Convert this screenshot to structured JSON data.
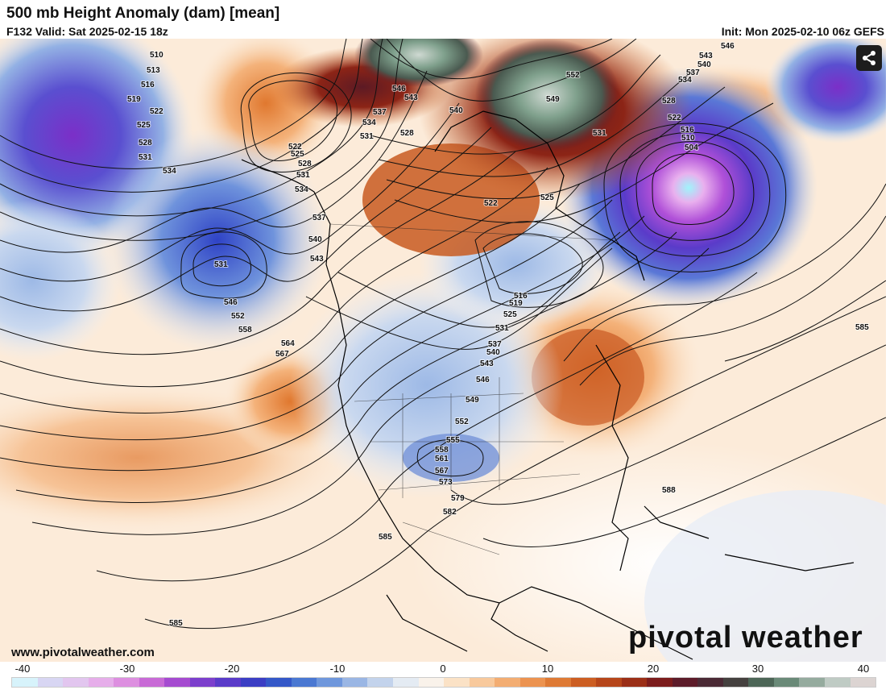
{
  "header": {
    "title": "500 mb Height Anomaly (dam) [mean]",
    "valid": "F132 Valid: Sat 2025-02-15 18z",
    "init": "Init: Mon 2025-02-10 06z GEFS"
  },
  "footer": {
    "website": "www.pivotalweather.com",
    "logo": "pivotal weather"
  },
  "share_button": {
    "icon": "share-icon"
  },
  "colorbar": {
    "ticks": [
      "-40",
      "-30",
      "-20",
      "-10",
      "0",
      "10",
      "20",
      "30",
      "40"
    ],
    "colors": [
      "#d7f3fb",
      "#d8d6f3",
      "#e2c6ef",
      "#e6aeea",
      "#dd8fe0",
      "#c86ad6",
      "#a54bd0",
      "#7c3fcc",
      "#5a3bc9",
      "#3b3ec4",
      "#3458c8",
      "#4a78d2",
      "#6f97dc",
      "#9ab6e4",
      "#c3d3ec",
      "#e4ebf3",
      "#f9f2ea",
      "#fbe2c6",
      "#f8c99c",
      "#f3ad72",
      "#ec9350",
      "#de7a35",
      "#cc5e22",
      "#b6461a",
      "#9b2f17",
      "#7c1d1d",
      "#5d1c2a",
      "#4b2a35",
      "#45413f",
      "#4d6657",
      "#6a8a78",
      "#95ab9e",
      "#bfcbc4",
      "#dcd4d2"
    ]
  },
  "contour_labels": [
    "510",
    "513",
    "516",
    "519",
    "522",
    "525",
    "528",
    "531",
    "534",
    "537",
    "540",
    "543",
    "546",
    "549",
    "552",
    "555",
    "558",
    "561",
    "564",
    "567",
    "573",
    "579",
    "582",
    "585",
    "588",
    "504"
  ]
}
